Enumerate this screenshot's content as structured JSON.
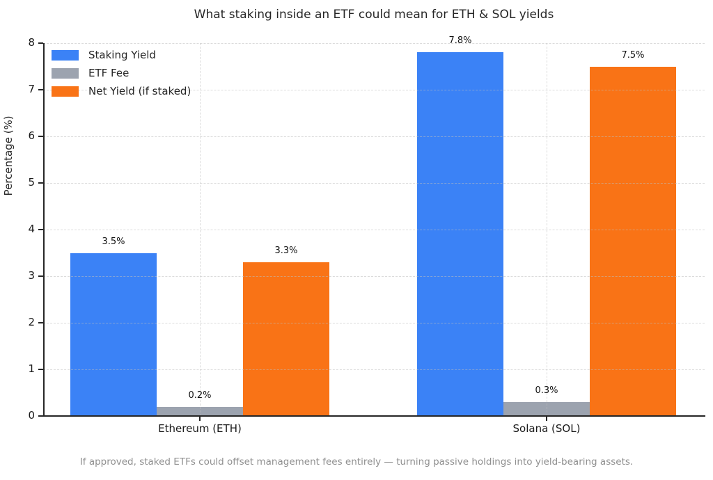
{
  "title": "What staking inside an ETF could mean for ETH & SOL yields",
  "footer": "If approved, staked ETFs could offset management fees entirely — turning passive holdings into yield-bearing assets.",
  "colors": {
    "staking_yield": "#3b82f6",
    "etf_fee": "#9ca3af",
    "net_yield": "#f97316",
    "axis": "#262626",
    "grid": "#bebebe",
    "footer_text": "#8f8f8f"
  },
  "chart_data": {
    "type": "bar",
    "title": "What staking inside an ETF could mean for ETH & SOL yields",
    "xlabel": "",
    "ylabel": "Percentage (%)",
    "ylim": [
      0,
      8
    ],
    "yticks": [
      0,
      1,
      2,
      3,
      4,
      5,
      6,
      7,
      8
    ],
    "grid": true,
    "grid_style": "dashed",
    "legend_position": "upper left",
    "legend_frame": false,
    "categories": [
      "Ethereum (ETH)",
      "Solana (SOL)"
    ],
    "series": [
      {
        "name": "Staking Yield",
        "color": "#3b82f6",
        "values": [
          3.5,
          7.8
        ],
        "labels": [
          "3.5%",
          "7.8%"
        ]
      },
      {
        "name": "ETF Fee",
        "color": "#9ca3af",
        "values": [
          0.2,
          0.3
        ],
        "labels": [
          "0.2%",
          "0.3%"
        ]
      },
      {
        "name": "Net Yield (if staked)",
        "color": "#f97316",
        "values": [
          3.3,
          7.5
        ],
        "labels": [
          "3.3%",
          "7.5%"
        ]
      }
    ]
  }
}
